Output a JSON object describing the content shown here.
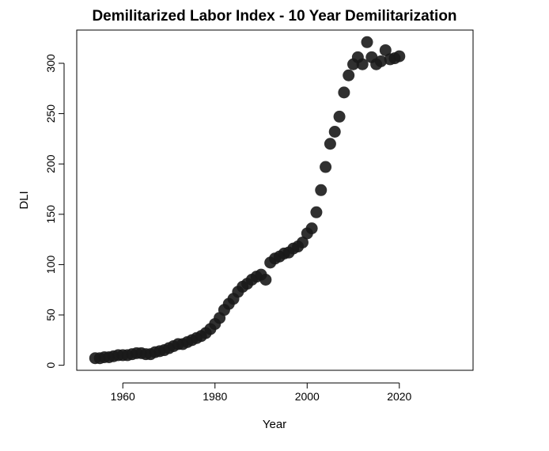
{
  "chart_data": {
    "type": "scatter",
    "title": "Demilitarized Labor Index - 10 Year Demilitarization",
    "xlabel": "Year",
    "ylabel": "DLI",
    "xlim": [
      1950,
      2036
    ],
    "ylim": [
      -5,
      333
    ],
    "x_ticks": [
      1960,
      1980,
      2000,
      2020
    ],
    "y_ticks": [
      0,
      50,
      100,
      150,
      200,
      250,
      300
    ],
    "grid": false,
    "legend": "none",
    "marker_color": "#1a1a1a",
    "series": [
      {
        "x": [
          1954,
          1955,
          1956,
          1957,
          1958,
          1959,
          1960,
          1961,
          1962,
          1963,
          1964,
          1965,
          1966,
          1967,
          1968,
          1969,
          1970,
          1971,
          1972,
          1973,
          1974,
          1975,
          1976,
          1977,
          1978,
          1979,
          1980,
          1981,
          1982,
          1983,
          1984,
          1985,
          1986,
          1987,
          1988,
          1989,
          1990,
          1991,
          1992,
          1993,
          1994,
          1995,
          1996,
          1997,
          1998,
          1999,
          2000,
          2001,
          2002,
          2003,
          2004,
          2005,
          2006,
          2007,
          2008,
          2009,
          2010,
          2011,
          2012,
          2013,
          2014,
          2015,
          2016,
          2017,
          2018,
          2019,
          2020
        ],
        "y": [
          7,
          7,
          8,
          8,
          9,
          10,
          10,
          10,
          11,
          12,
          12,
          11,
          11,
          13,
          14,
          15,
          17,
          19,
          21,
          21,
          23,
          25,
          27,
          29,
          32,
          36,
          41,
          47,
          55,
          61,
          66,
          73,
          78,
          81,
          85,
          88,
          90,
          85,
          102,
          106,
          108,
          111,
          112,
          116,
          118,
          122,
          131,
          136,
          152,
          174,
          197,
          220,
          232,
          247,
          271,
          288,
          299,
          306,
          299,
          321,
          306,
          299,
          302,
          313,
          304,
          305,
          307
        ]
      }
    ]
  }
}
